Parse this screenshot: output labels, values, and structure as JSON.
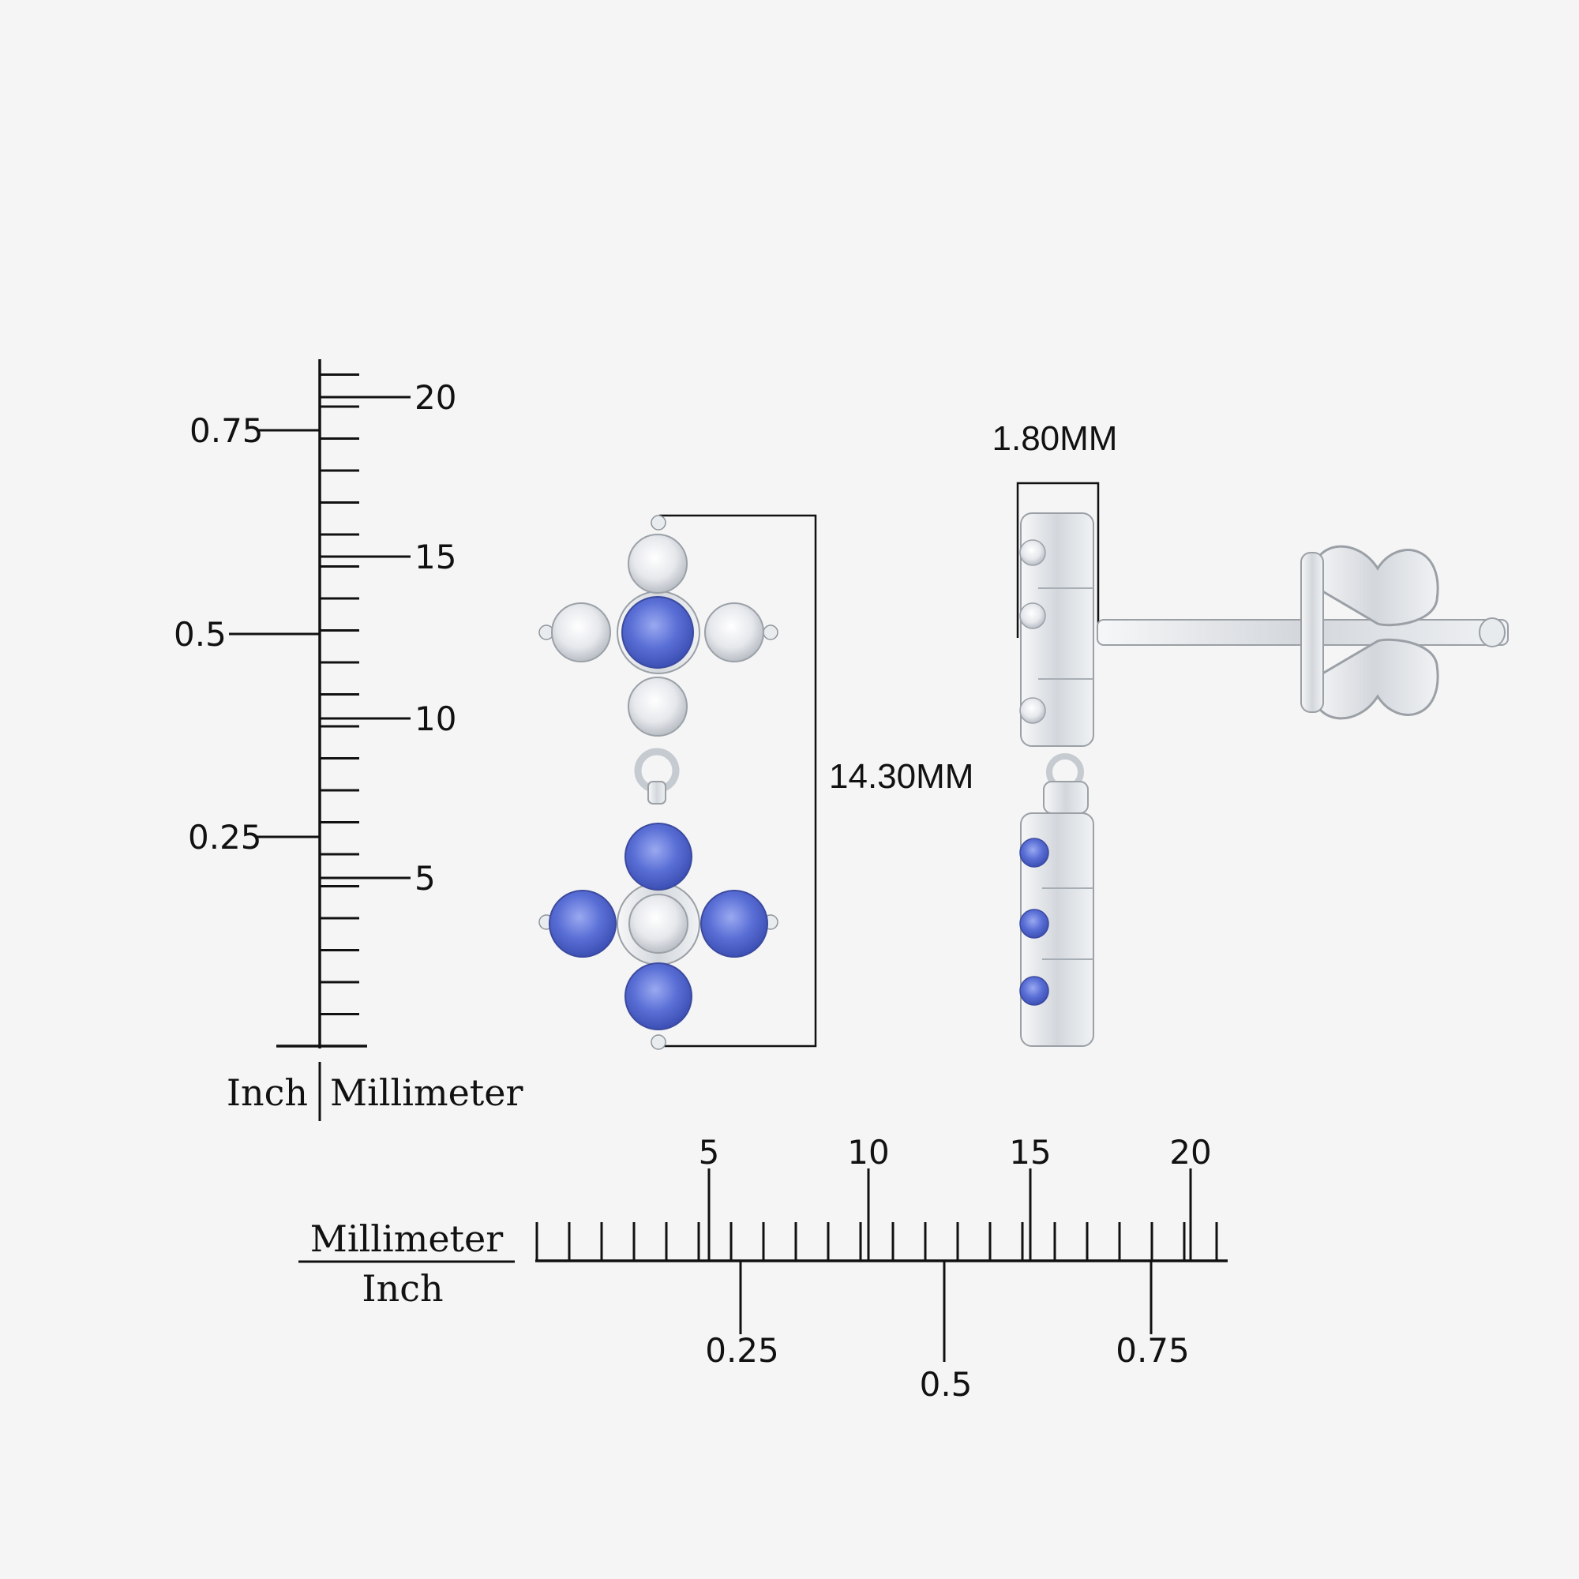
{
  "colors": {
    "background": "#f5f5f5",
    "sapphire": "#5a6fd6",
    "diamond": "#eef0f3",
    "metal": "#dfe2e6",
    "ink": "#111111"
  },
  "vertical_scale": {
    "inch_labels": [
      "0.75",
      "0.5",
      "0.25"
    ],
    "mm_labels": [
      "20",
      "15",
      "10",
      "5"
    ],
    "unit_left": "Inch",
    "unit_right": "Millimeter"
  },
  "horizontal_scale": {
    "mm_labels": [
      "5",
      "10",
      "15",
      "20"
    ],
    "inch_labels": [
      "0.25",
      "0.5",
      "0.75"
    ],
    "unit_top": "Millimeter",
    "unit_bottom": "Inch"
  },
  "dimensions": {
    "height": "14.30MM",
    "width": "1.80MM"
  },
  "product": {
    "top_cross": [
      "diamond",
      "diamond",
      "sapphire",
      "diamond",
      "diamond"
    ],
    "bottom_cross": [
      "sapphire",
      "sapphire",
      "diamond",
      "sapphire",
      "sapphire"
    ]
  }
}
